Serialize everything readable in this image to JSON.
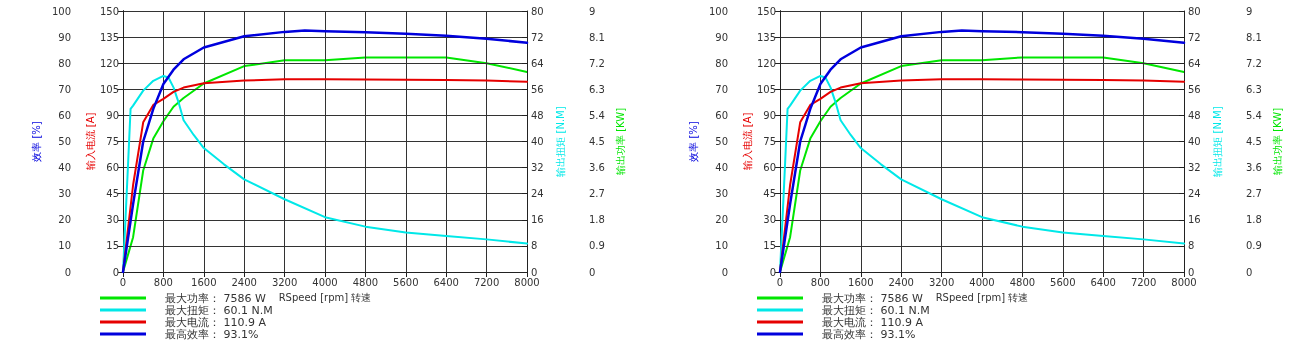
{
  "chart_data": [
    {
      "type": "line",
      "ylabel": "输出功率 [KW]",
      "tick_labels": "y",
      "xlim": [
        0,
        8000
      ],
      "xticks": [
        0,
        800,
        1600,
        2400,
        3200,
        4000,
        4800,
        5600,
        6400,
        7200,
        8000
      ],
      "ylim": [
        0,
        9
      ],
      "yticks": [
        0,
        0.9,
        1.8,
        2.7,
        3.6,
        4.5,
        5.4,
        6.3,
        7.2,
        8.1,
        9
      ],
      "legend": "bottom",
      "marker": "none",
      "line_style": "solid",
      "series": [
        {
          "name": "最大功率： 7586 W",
          "color": "#00e600",
          "x": [
            0,
            200,
            400,
            600,
            800,
            1000,
            1200,
            1600,
            2400,
            3200,
            4000,
            4800,
            5600,
            6400,
            7200,
            8000
          ],
          "values": [
            0,
            1.2,
            3.5,
            4.6,
            5.2,
            5.7,
            6.0,
            6.5,
            7.1,
            7.3,
            7.3,
            7.4,
            7.4,
            7.4,
            7.2,
            6.9
          ]
        }
      ]
    },
    {
      "type": "line",
      "xlabel": "RSpeed [rpm] 转速",
      "ylabel": "效率 [%]",
      "y2label": "输入电流 [A]",
      "y3label": "输出扭矩 [N.M]",
      "xlim": [
        0,
        8000
      ],
      "xticks": [
        0,
        800,
        1600,
        2400,
        3200,
        4000,
        4800,
        5600,
        6400,
        7200,
        8000
      ],
      "ylim": [
        0,
        100
      ],
      "yticks": [
        0,
        10,
        20,
        30,
        40,
        50,
        60,
        70,
        80,
        90,
        100
      ],
      "y2lim": [
        0,
        150
      ],
      "y2ticks": [
        0,
        15,
        30,
        45,
        60,
        75,
        90,
        105,
        120,
        135,
        150
      ],
      "y3lim": [
        0,
        80
      ],
      "y3ticks": [
        0,
        8,
        16,
        24,
        32,
        40,
        48,
        56,
        64,
        72,
        80
      ],
      "grid": true,
      "legend": "bottom",
      "marker": "none",
      "line_style": "solid",
      "series": [
        {
          "name": "最大扭矩： 60.1 N.M",
          "color": "#00e8e8",
          "axis": "y3",
          "x": [
            0,
            100,
            150,
            200,
            400,
            600,
            800,
            900,
            1000,
            1100,
            1200,
            1400,
            1600,
            2000,
            2400,
            3200,
            4000,
            4800,
            5600,
            6400,
            7200,
            8000
          ],
          "values": [
            0,
            33,
            50,
            51,
            55.6,
            58.6,
            60.1,
            59.6,
            56.6,
            52,
            46.5,
            42,
            38,
            33,
            28.4,
            22.3,
            16.8,
            13.9,
            12.1,
            11,
            10,
            8.7
          ]
        },
        {
          "name": "最大电流： 110.9 A",
          "color": "#e60000",
          "axis": "y2",
          "x": [
            0,
            200,
            400,
            600,
            800,
            1000,
            1200,
            1600,
            2400,
            3200,
            4000,
            4800,
            5600,
            6400,
            7200,
            8000
          ],
          "values": [
            0,
            50,
            86,
            96,
            99.5,
            103.5,
            106,
            108.5,
            110,
            110.8,
            110.8,
            110.6,
            110.5,
            110.3,
            110,
            109.3
          ]
        },
        {
          "name": "最高效率： 93.1%",
          "color": "#0000dd",
          "x": [
            0,
            200,
            400,
            600,
            800,
            1000,
            1200,
            1600,
            2400,
            3200,
            3600,
            4000,
            4800,
            5600,
            6400,
            7200,
            8000
          ],
          "values": [
            0,
            26,
            50,
            62.5,
            72,
            77.5,
            81.5,
            86,
            90.3,
            92,
            92.5,
            92.2,
            91.9,
            91.3,
            90.5,
            89.4,
            87.8
          ]
        }
      ]
    },
    {
      "type": "line",
      "ylabel": "输出功率 [KW]",
      "tick_labels": "y",
      "xlim": [
        0,
        8000
      ],
      "xticks": [
        0,
        800,
        1600,
        2400,
        3200,
        4000,
        4800,
        5600,
        6400,
        7200,
        8000
      ],
      "ylim": [
        0,
        9
      ],
      "yticks": [
        0,
        0.9,
        1.8,
        2.7,
        3.6,
        4.5,
        5.4,
        6.3,
        7.2,
        8.1,
        9
      ],
      "legend": "bottom",
      "marker": "none",
      "line_style": "solid",
      "series": [
        {
          "name": "最大功率： 7586 W",
          "color": "#00e600",
          "x": [
            0,
            200,
            400,
            600,
            800,
            1000,
            1200,
            1600,
            2400,
            3200,
            4000,
            4800,
            5600,
            6400,
            7200,
            8000
          ],
          "values": [
            0,
            1.2,
            3.5,
            4.6,
            5.2,
            5.7,
            6.0,
            6.5,
            7.1,
            7.3,
            7.3,
            7.4,
            7.4,
            7.4,
            7.2,
            6.9
          ]
        }
      ]
    },
    {
      "type": "line",
      "xlabel": "RSpeed [rpm] 转速",
      "ylabel": "效率 [%]",
      "y2label": "输入电流 [A]",
      "y3label": "输出扭矩 [N.M]",
      "xlim": [
        0,
        8000
      ],
      "xticks": [
        0,
        800,
        1600,
        2400,
        3200,
        4000,
        4800,
        5600,
        6400,
        7200,
        8000
      ],
      "ylim": [
        0,
        100
      ],
      "yticks": [
        0,
        10,
        20,
        30,
        40,
        50,
        60,
        70,
        80,
        90,
        100
      ],
      "y2lim": [
        0,
        150
      ],
      "y2ticks": [
        0,
        15,
        30,
        45,
        60,
        75,
        90,
        105,
        120,
        135,
        150
      ],
      "y3lim": [
        0,
        80
      ],
      "y3ticks": [
        0,
        8,
        16,
        24,
        32,
        40,
        48,
        56,
        64,
        72,
        80
      ],
      "grid": true,
      "legend": "bottom",
      "marker": "none",
      "line_style": "solid",
      "series": [
        {
          "name": "最大扭矩： 60.1 N.M",
          "color": "#00e8e8",
          "axis": "y3",
          "x": [
            0,
            100,
            150,
            200,
            400,
            600,
            800,
            900,
            1000,
            1100,
            1200,
            1400,
            1600,
            2000,
            2400,
            3200,
            4000,
            4800,
            5600,
            6400,
            7200,
            8000
          ],
          "values": [
            0,
            33,
            50,
            51,
            55.6,
            58.6,
            60.1,
            59.6,
            56.6,
            52,
            46.5,
            42,
            38,
            33,
            28.4,
            22.3,
            16.8,
            13.9,
            12.1,
            11,
            10,
            8.7
          ]
        },
        {
          "name": "最大电流： 110.9 A",
          "color": "#e60000",
          "axis": "y2",
          "x": [
            0,
            200,
            400,
            600,
            800,
            1000,
            1200,
            1600,
            2400,
            3200,
            4000,
            4800,
            5600,
            6400,
            7200,
            8000
          ],
          "values": [
            0,
            50,
            86,
            96,
            99.5,
            103.5,
            106,
            108.5,
            110,
            110.8,
            110.8,
            110.6,
            110.5,
            110.3,
            110,
            109.3
          ]
        },
        {
          "name": "最高效率： 93.1%",
          "color": "#0000dd",
          "x": [
            0,
            200,
            400,
            600,
            800,
            1000,
            1200,
            1600,
            2400,
            3200,
            3600,
            4000,
            4800,
            5600,
            6400,
            7200,
            8000
          ],
          "values": [
            0,
            26,
            50,
            62.5,
            72,
            77.5,
            81.5,
            86,
            90.3,
            92,
            92.5,
            92.2,
            91.9,
            91.3,
            90.5,
            89.4,
            87.8
          ]
        }
      ]
    }
  ]
}
